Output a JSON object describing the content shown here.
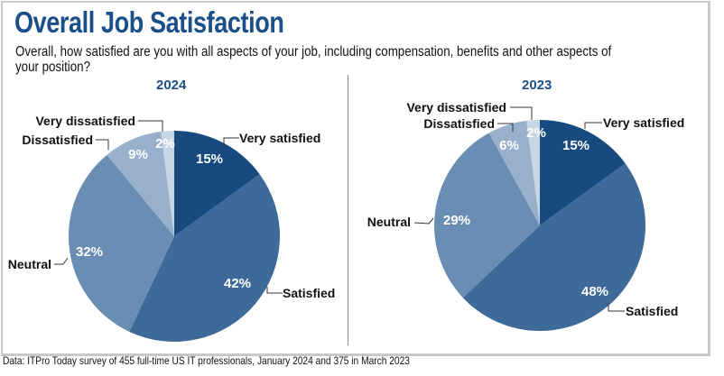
{
  "title": "Overall Job Satisfaction",
  "subtitle": "Overall, how satisfied are you with all aspects of your job, including compensation, benefits and other aspects of your position?",
  "footer": "Data: ITPro Today survey of 455 full-time US IT professionals, January 2024 and 375 in March 2023",
  "chart_data": [
    {
      "type": "pie",
      "title": "2024",
      "categories": [
        "Very satisfied",
        "Satisfied",
        "Neutral",
        "Dissatisfied",
        "Very dissatisfied"
      ],
      "values": [
        15,
        42,
        32,
        9,
        2
      ],
      "labels": [
        "15%",
        "42%",
        "32%",
        "9%",
        "2%"
      ],
      "colors": [
        "#174a7e",
        "#3d6a99",
        "#6a8db3",
        "#98b0cb",
        "#c8d5e3"
      ]
    },
    {
      "type": "pie",
      "title": "2023",
      "categories": [
        "Very satisfied",
        "Satisfied",
        "Neutral",
        "Dissatisfied",
        "Very dissatisfied"
      ],
      "values": [
        15,
        48,
        29,
        6,
        2
      ],
      "labels": [
        "15%",
        "48%",
        "29%",
        "6%",
        "2%"
      ],
      "colors": [
        "#174a7e",
        "#3d6a99",
        "#6a8db3",
        "#98b0cb",
        "#c8d5e3"
      ]
    }
  ]
}
